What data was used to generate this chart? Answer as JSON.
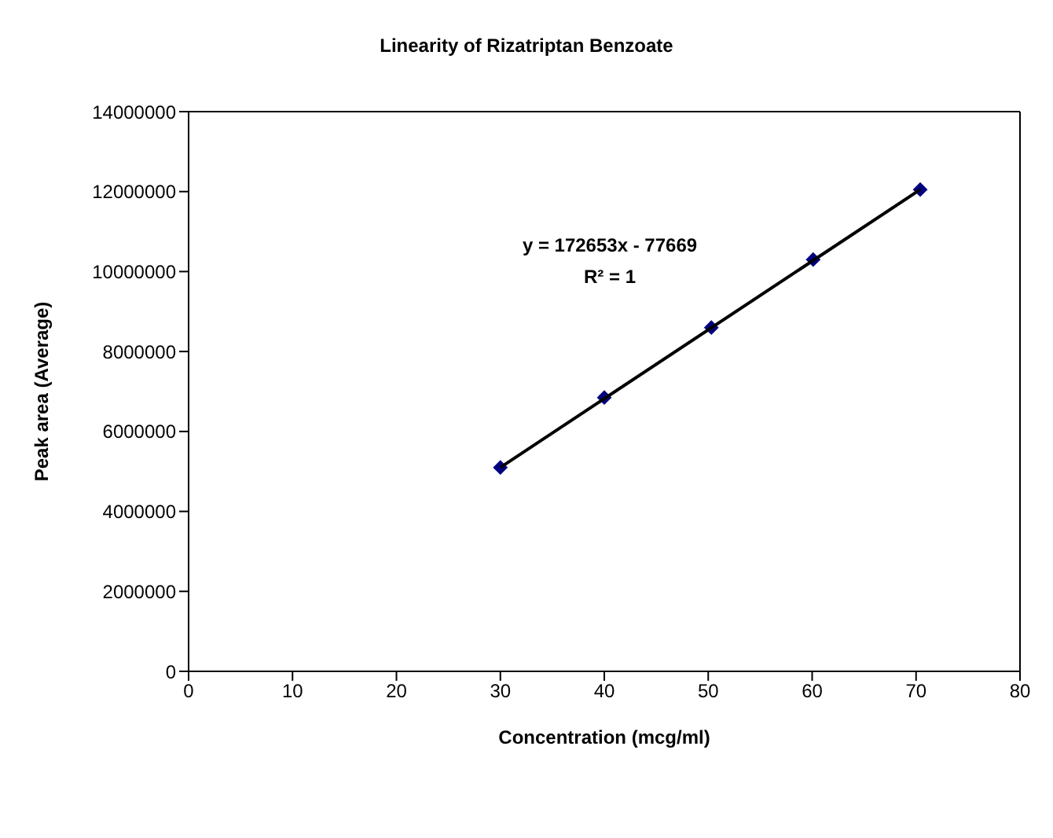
{
  "chart_data": {
    "type": "scatter",
    "title": "Linearity of Rizatriptan Benzoate",
    "xlabel": "Concentration (mcg/ml)",
    "ylabel": "Peak area (Average)",
    "x": [
      30,
      40,
      50.3,
      60.1,
      70.4
    ],
    "series": [
      {
        "color": "#000080",
        "values": [
          5100000,
          6850000,
          8600000,
          10300000,
          12050000
        ],
        "marker": "diamond"
      },
      {
        "type": "line",
        "color": "#000000",
        "x": [
          30,
          70.4
        ],
        "values": [
          5100000,
          12050000
        ],
        "marker": "none",
        "line_style": "solid"
      }
    ],
    "annotations": [
      "y = 172653x - 77669",
      "R² = 1"
    ],
    "xlim": [
      0,
      80
    ],
    "xticks": [
      0,
      10,
      20,
      30,
      40,
      50,
      60,
      70,
      80
    ],
    "ylim": [
      0,
      14000000
    ],
    "yticks": [
      0,
      2000000,
      4000000,
      6000000,
      8000000,
      10000000,
      12000000,
      14000000
    ],
    "legend": false
  }
}
